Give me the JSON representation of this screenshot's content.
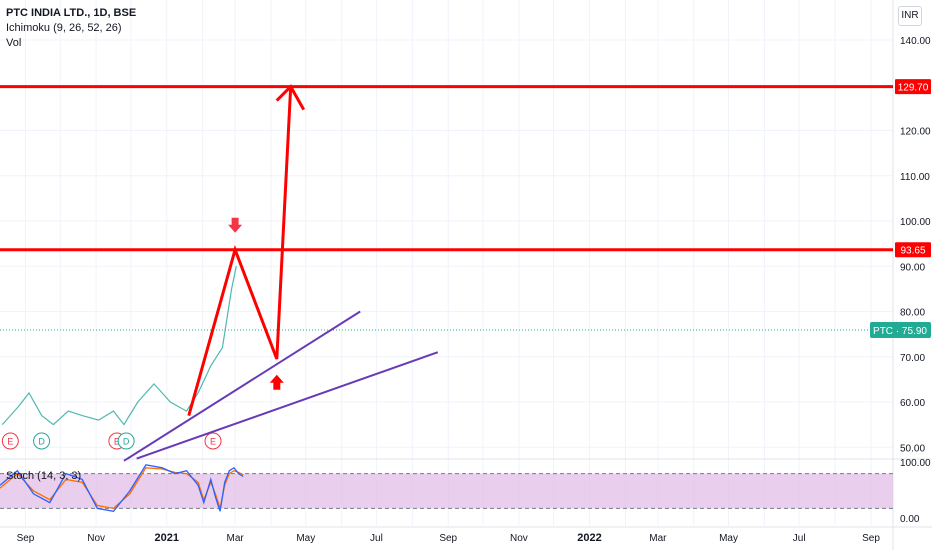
{
  "header": {
    "symbol_title": "PTC INDIA LTD., 1D, BSE",
    "indicator_1": "Ichimoku (9, 26, 52, 26)",
    "indicator_2": "Vol",
    "currency": "INR"
  },
  "chart_data": {
    "type": "line",
    "title": "PTC INDIA LTD., 1D, BSE",
    "price_axis": {
      "ticks": [
        140,
        130,
        120,
        110,
        100,
        90,
        80,
        70,
        60,
        50
      ],
      "tick_labels": [
        "140.00",
        "",
        "120.00",
        "110.00",
        "100.00",
        "90.00",
        "80.00",
        "70.00",
        "60.00",
        "50.00"
      ],
      "ylim": [
        47,
        143
      ]
    },
    "time_axis": {
      "tick_labels": [
        "Sep",
        "Nov",
        "2021",
        "Mar",
        "May",
        "Jul",
        "Sep",
        "Nov",
        "2022",
        "Mar",
        "May",
        "Jul",
        "Sep"
      ],
      "xlim": [
        "2020-08-10",
        "2022-09-20"
      ]
    },
    "horizontal_levels": [
      {
        "value": 129.7,
        "label": "129.70",
        "color": "#ff0000"
      },
      {
        "value": 93.65,
        "label": "93.65",
        "color": "#ff0000"
      }
    ],
    "last_price": {
      "value": 75.9,
      "label": "PTC · 75.90",
      "color": "#22ab94"
    },
    "projection_path": {
      "color": "#ff0000",
      "points": [
        {
          "date": "2021-01-20",
          "price": 57
        },
        {
          "date": "2021-03-01",
          "price": 93.65
        },
        {
          "date": "2021-04-06",
          "price": 69.5
        },
        {
          "date": "2021-04-18",
          "price": 129.7
        }
      ]
    },
    "trend_lines": [
      {
        "color": "#673ab7",
        "from": {
          "date": "2020-11-25",
          "price": 47
        },
        "to": {
          "date": "2021-06-17",
          "price": 80
        }
      },
      {
        "color": "#673ab7",
        "from": {
          "date": "2020-12-06",
          "price": 47.5
        },
        "to": {
          "date": "2021-08-23",
          "price": 71
        }
      }
    ],
    "arrows": [
      {
        "direction": "down",
        "date": "2021-03-01",
        "price": 98.5,
        "color": "#f23645"
      },
      {
        "direction": "up",
        "date": "2021-04-06",
        "price": 64.7,
        "color": "#ff0000"
      }
    ],
    "candles_close": [
      {
        "date": "2020-08-12",
        "price": 55
      },
      {
        "date": "2020-08-26",
        "price": 59
      },
      {
        "date": "2020-09-04",
        "price": 62
      },
      {
        "date": "2020-09-15",
        "price": 57
      },
      {
        "date": "2020-09-25",
        "price": 55
      },
      {
        "date": "2020-10-08",
        "price": 58
      },
      {
        "date": "2020-10-20",
        "price": 57
      },
      {
        "date": "2020-11-03",
        "price": 56
      },
      {
        "date": "2020-11-16",
        "price": 58
      },
      {
        "date": "2020-11-25",
        "price": 55
      },
      {
        "date": "2020-12-07",
        "price": 60
      },
      {
        "date": "2020-12-21",
        "price": 64
      },
      {
        "date": "2021-01-04",
        "price": 60
      },
      {
        "date": "2021-01-18",
        "price": 58
      },
      {
        "date": "2021-01-28",
        "price": 62
      },
      {
        "date": "2021-02-08",
        "price": 68
      },
      {
        "date": "2021-02-18",
        "price": 72
      },
      {
        "date": "2021-02-26",
        "price": 85
      },
      {
        "date": "2021-03-02",
        "price": 90
      }
    ],
    "earnings_markers": [
      {
        "date": "2020-08-12",
        "label": "E"
      },
      {
        "date": "2020-09-08",
        "label": "D"
      },
      {
        "date": "2020-11-12",
        "label": "E"
      },
      {
        "date": "2020-11-20",
        "label": "D"
      },
      {
        "date": "2021-02-03",
        "label": "E"
      }
    ],
    "stochastic": {
      "name": "Stoch (14, 3, 3)",
      "levels": [
        80,
        20
      ],
      "tick_labels": [
        "100.00",
        "0.00"
      ],
      "ylim": [
        0,
        100
      ],
      "k": [
        60,
        85,
        45,
        30,
        80,
        70,
        20,
        15,
        50,
        95,
        90,
        80,
        85,
        60,
        30,
        70,
        40,
        15,
        65,
        85,
        90,
        80,
        75
      ],
      "d": [
        55,
        80,
        50,
        35,
        70,
        65,
        25,
        20,
        45,
        90,
        88,
        82,
        80,
        65,
        35,
        65,
        45,
        20,
        60,
        80,
        85,
        82,
        78
      ],
      "dates": [
        "2020-08-10",
        "2020-08-25",
        "2020-09-08",
        "2020-09-22",
        "2020-10-06",
        "2020-10-20",
        "2020-11-02",
        "2020-11-16",
        "2020-11-30",
        "2020-12-14",
        "2020-12-28",
        "2021-01-08",
        "2021-01-18",
        "2021-01-28",
        "2021-02-02",
        "2021-02-08",
        "2021-02-12",
        "2021-02-16",
        "2021-02-20",
        "2021-02-24",
        "2021-02-28",
        "2021-03-04",
        "2021-03-08"
      ]
    }
  }
}
